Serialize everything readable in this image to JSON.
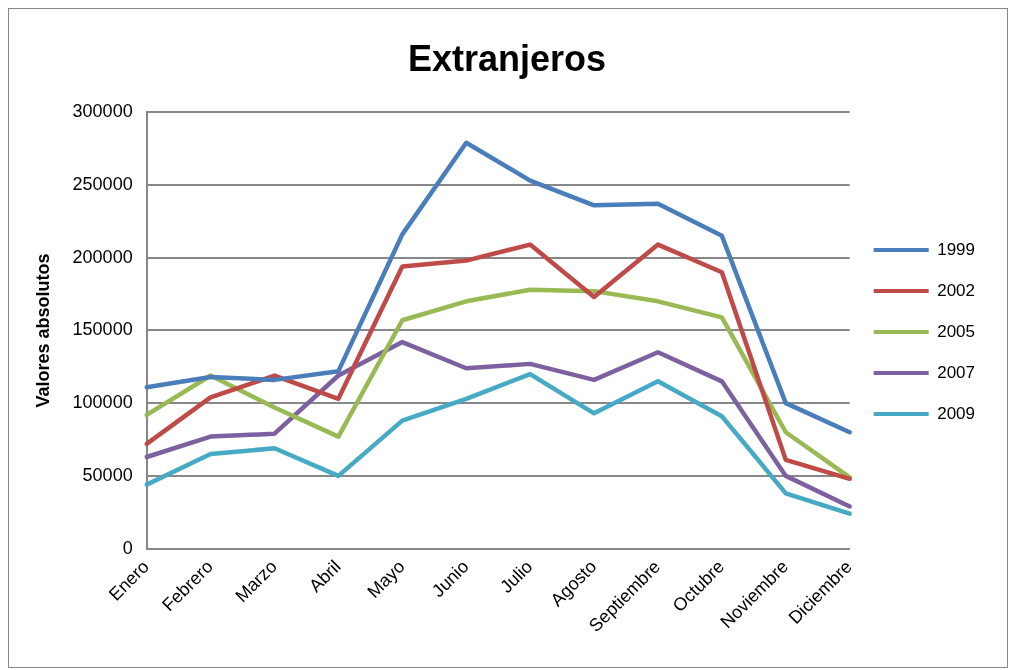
{
  "chart_data": {
    "type": "line",
    "title": "Extranjeros",
    "ylabel": "Valores absolutos",
    "categories": [
      "Enero",
      "Febrero",
      "Marzo",
      "Abril",
      "Mayo",
      "Junio",
      "Julio",
      "Agosto",
      "Septiembre",
      "Octubre",
      "Noviembre",
      "Diciembre"
    ],
    "series": [
      {
        "name": "1999",
        "color": "#4a7ebb",
        "values": [
          111000,
          118000,
          116000,
          122000,
          216000,
          279000,
          253000,
          236000,
          237000,
          215000,
          100000,
          80000
        ]
      },
      {
        "name": "2002",
        "color": "#be4b48",
        "values": [
          72000,
          104000,
          119000,
          103000,
          194000,
          198000,
          209000,
          173000,
          209000,
          190000,
          61000,
          48000
        ]
      },
      {
        "name": "2005",
        "color": "#98b954",
        "values": [
          92000,
          119000,
          97000,
          77000,
          157000,
          170000,
          178000,
          177000,
          170000,
          159000,
          80000,
          49000
        ]
      },
      {
        "name": "2007",
        "color": "#7d60a0",
        "values": [
          63000,
          77000,
          79000,
          119000,
          142000,
          124000,
          127000,
          116000,
          135000,
          115000,
          50000,
          29000
        ]
      },
      {
        "name": "2009",
        "color": "#46aac5",
        "values": [
          44000,
          65000,
          69000,
          50000,
          88000,
          103000,
          120000,
          93000,
          115000,
          91000,
          38000,
          24000
        ]
      }
    ],
    "ylim": [
      0,
      300000
    ],
    "yticks": [
      0,
      50000,
      100000,
      150000,
      200000,
      250000,
      300000
    ],
    "grid": "y",
    "legend": "right",
    "marker": "none",
    "line_style": "solid"
  }
}
